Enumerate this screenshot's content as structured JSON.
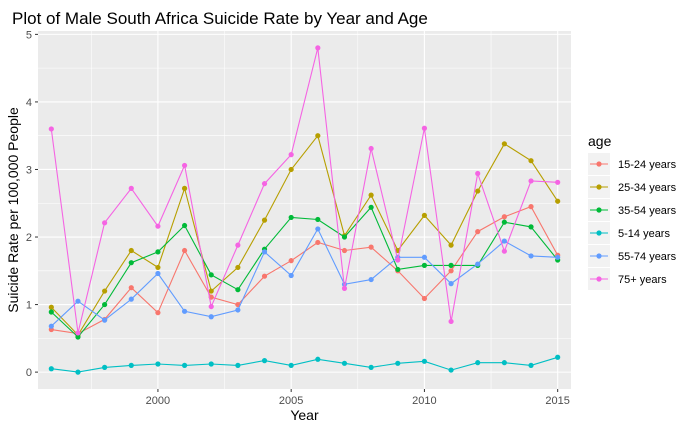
{
  "chart_data": {
    "type": "line",
    "title": "Plot of Male South Africa Suicide Rate by Year and Age",
    "xlabel": "Year",
    "ylabel": "Suicide Rate per 100,000 People",
    "xlim": [
      1995.5,
      2015.5
    ],
    "ylim": [
      -0.25,
      5.05
    ],
    "x_ticks": [
      2000,
      2005,
      2010,
      2015
    ],
    "y_ticks": [
      0,
      1,
      2,
      3,
      4,
      5
    ],
    "grid": true,
    "legend_title": "age",
    "legend_position": "right",
    "x": [
      1996,
      1997,
      1998,
      1999,
      2000,
      2001,
      2002,
      2003,
      2004,
      2005,
      2006,
      2007,
      2008,
      2009,
      2010,
      2011,
      2012,
      2013,
      2014,
      2015
    ],
    "series": [
      {
        "name": "15-24 years",
        "color": "#F8766D",
        "values": [
          0.63,
          0.57,
          0.78,
          1.25,
          0.88,
          1.8,
          1.11,
          1.0,
          1.42,
          1.65,
          1.92,
          1.8,
          1.85,
          1.5,
          1.09,
          1.5,
          2.08,
          2.3,
          2.45,
          1.73
        ]
      },
      {
        "name": "25-34 years",
        "color": "#B79F00",
        "values": [
          0.96,
          0.55,
          1.2,
          1.8,
          1.55,
          2.72,
          1.2,
          1.55,
          2.25,
          3.0,
          3.5,
          2.02,
          2.62,
          1.8,
          2.32,
          1.88,
          2.68,
          3.38,
          3.13,
          2.53
        ]
      },
      {
        "name": "35-54 years",
        "color": "#00BA38",
        "values": [
          0.89,
          0.52,
          1.0,
          1.62,
          1.78,
          2.17,
          1.44,
          1.22,
          1.82,
          2.29,
          2.26,
          2.0,
          2.44,
          1.52,
          1.58,
          1.58,
          1.58,
          2.22,
          2.15,
          1.66
        ]
      },
      {
        "name": "5-14 years",
        "color": "#00BFC4",
        "values": [
          0.05,
          0.0,
          0.07,
          0.1,
          0.12,
          0.1,
          0.12,
          0.1,
          0.17,
          0.1,
          0.19,
          0.13,
          0.07,
          0.13,
          0.16,
          0.03,
          0.14,
          0.14,
          0.1,
          0.22
        ]
      },
      {
        "name": "55-74 years",
        "color": "#619CFF",
        "values": [
          0.68,
          1.05,
          0.77,
          1.08,
          1.46,
          0.9,
          0.82,
          0.92,
          1.78,
          1.43,
          2.12,
          1.3,
          1.37,
          1.7,
          1.7,
          1.31,
          1.6,
          1.94,
          1.72,
          1.7
        ]
      },
      {
        "name": "75+ years",
        "color": "#F564E3",
        "values": [
          3.6,
          0.58,
          2.21,
          2.72,
          2.16,
          3.06,
          0.97,
          1.88,
          2.79,
          3.22,
          4.8,
          1.24,
          3.31,
          1.66,
          3.61,
          0.75,
          2.94,
          1.79,
          2.83,
          2.81
        ]
      }
    ]
  }
}
